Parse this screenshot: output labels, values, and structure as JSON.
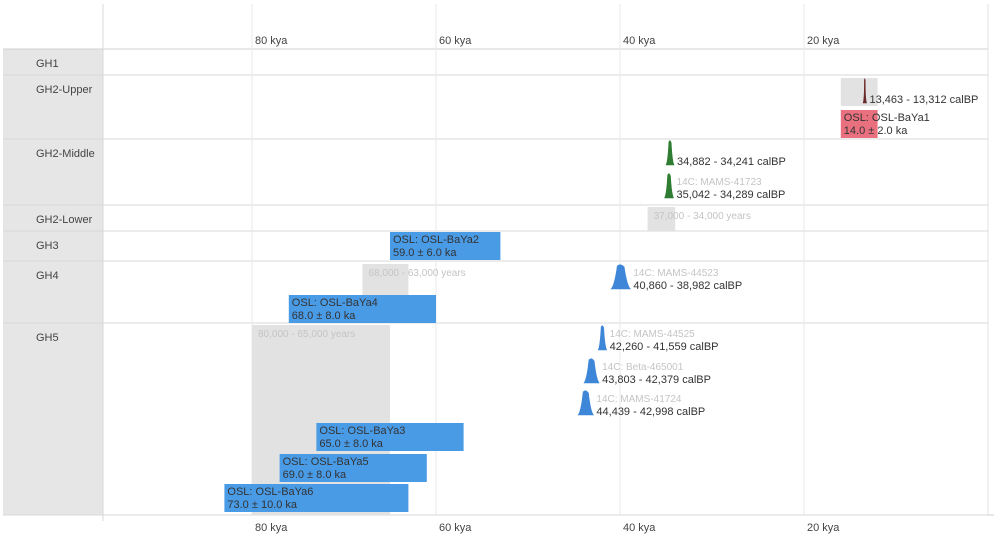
{
  "chart_data": {
    "type": "timeline",
    "x_unit": "kya",
    "xlim": [
      97,
      6
    ],
    "x_ticks": [
      {
        "value": 80,
        "label": "80 kya"
      },
      {
        "value": 60,
        "label": "60 kya"
      },
      {
        "value": 40,
        "label": "40 kya"
      },
      {
        "value": 20,
        "label": "20 kya"
      }
    ],
    "phases": [
      "GH1",
      "GH2-Upper",
      "GH2-Middle",
      "GH2-Lower",
      "GH3",
      "GH4",
      "GH5"
    ],
    "ranges": [
      {
        "phase": "GH2-Lower",
        "start": 37.0,
        "end": 34.0,
        "label": "37,000 - 34,000 years",
        "slot": 0
      },
      {
        "phase": "GH4",
        "start": 68.0,
        "end": 63.0,
        "label": "68,000 - 63,000 years",
        "slot": 0
      },
      {
        "phase": "GH5",
        "start": 80.0,
        "end": 65.0,
        "label": "80,000 - 65,000 years",
        "slot": 0
      }
    ],
    "osl": [
      {
        "phase": "GH2-Upper",
        "name": "OSL: OSL-BaYa1",
        "age": 14.0,
        "err": 2.0,
        "age_label": "14.0 ± 2.0 ka",
        "color": "#e8707f",
        "slot": 1
      },
      {
        "phase": "GH3",
        "name": "OSL: OSL-BaYa2",
        "age": 59.0,
        "err": 6.0,
        "age_label": "59.0 ± 6.0 ka",
        "color": "#4a9be6",
        "slot": 0
      },
      {
        "phase": "GH4",
        "name": "OSL: OSL-BaYa4",
        "age": 68.0,
        "err": 8.0,
        "age_label": "68.0 ± 8.0 ka",
        "color": "#4a9be6",
        "slot": 1
      },
      {
        "phase": "GH5",
        "name": "OSL: OSL-BaYa3",
        "age": 65.0,
        "err": 8.0,
        "age_label": "65.0 ± 8.0 ka",
        "color": "#4a9be6",
        "slot": 3
      },
      {
        "phase": "GH5",
        "name": "OSL: OSL-BaYa5",
        "age": 69.0,
        "err": 8.0,
        "age_label": "69.0 ± 8.0 ka",
        "color": "#4a9be6",
        "slot": 4
      },
      {
        "phase": "GH5",
        "name": "OSL: OSL-BaYa6",
        "age": 73.0,
        "err": 10.0,
        "age_label": "73.0 ± 10.0 ka",
        "color": "#4a9be6",
        "slot": 5
      }
    ],
    "radiocarbon": [
      {
        "phase": "GH2-Upper",
        "name": "",
        "from": 13.463,
        "to": 13.312,
        "range_label": "13,463 - 13,312 calBP",
        "color": "#6b2a2a",
        "slot": 0
      },
      {
        "phase": "GH2-Middle",
        "name": "",
        "from": 34.882,
        "to": 34.241,
        "range_label": "34,882 - 34,241 calBP",
        "color": "#2e7d32",
        "slot": 0
      },
      {
        "phase": "GH2-Middle",
        "name": "14C: MAMS-41723",
        "from": 35.042,
        "to": 34.289,
        "range_label": "35,042 - 34,289 calBP",
        "color": "#2e7d32",
        "slot": 1
      },
      {
        "phase": "GH4",
        "name": "14C: MAMS-44523",
        "from": 40.86,
        "to": 38.982,
        "range_label": "40,860 - 38,982 calBP",
        "color": "#3d86d8",
        "slot": 0
      },
      {
        "phase": "GH5",
        "name": "14C: MAMS-44525",
        "from": 42.26,
        "to": 41.559,
        "range_label": "42,260 - 41,559 calBP",
        "color": "#3d86d8",
        "slot": 0
      },
      {
        "phase": "GH5",
        "name": "14C: Beta-465001",
        "from": 43.803,
        "to": 42.379,
        "range_label": "43,803 - 42,379 calBP",
        "color": "#3d86d8",
        "slot": 1
      },
      {
        "phase": "GH5",
        "name": "14C: MAMS-41724",
        "from": 44.439,
        "to": 42.998,
        "range_label": "44,439 - 42,998 calBP",
        "color": "#3d86d8",
        "slot": 2
      }
    ]
  }
}
